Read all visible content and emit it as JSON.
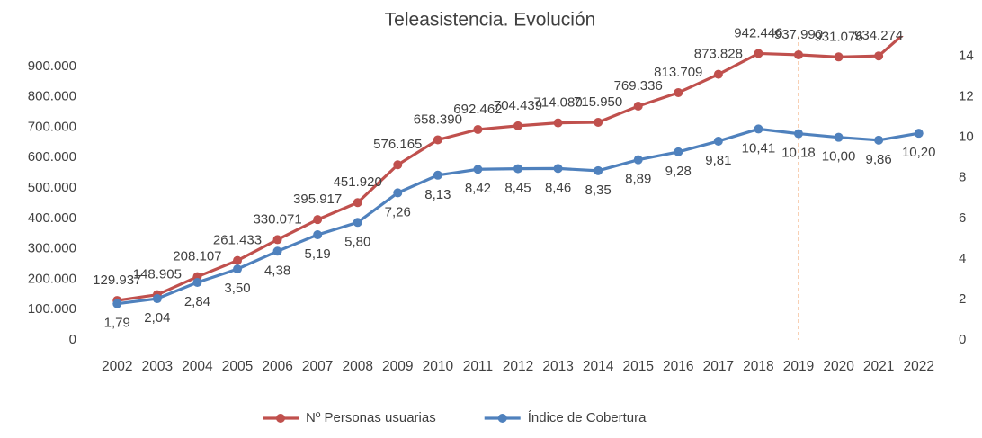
{
  "chart_data": {
    "type": "line",
    "title": "Teleasistencia. Evolución",
    "categories": [
      "2002",
      "2003",
      "2004",
      "2005",
      "2006",
      "2007",
      "2008",
      "2009",
      "2010",
      "2011",
      "2012",
      "2013",
      "2014",
      "2015",
      "2016",
      "2017",
      "2018",
      "2019",
      "2020",
      "2021",
      "2022"
    ],
    "series": [
      {
        "name": "Nº Personas usuarias",
        "color": "#c0504d",
        "values": [
          129937,
          148905,
          208107,
          261433,
          330071,
          395917,
          451920,
          576165,
          658390,
          692462,
          704439,
          714080,
          715950,
          769336,
          813709,
          873828,
          942446,
          937990,
          931076,
          934274,
          1050000
        ],
        "value_labels": [
          "129.937",
          "148.905",
          "208.107",
          "261.433",
          "330.071",
          "395.917",
          "451.920",
          "576.165",
          "658.390",
          "692.462",
          "704.439",
          "714.080",
          "715.950",
          "769.336",
          "813.709",
          "873.828",
          "942.446",
          "937.990",
          "931.076",
          "934.274",
          null
        ]
      },
      {
        "name": "Índice de Cobertura",
        "color": "#4f81bd",
        "axis": "y2",
        "values": [
          1.79,
          2.04,
          2.84,
          3.5,
          4.38,
          5.19,
          5.8,
          7.26,
          8.13,
          8.42,
          8.45,
          8.46,
          8.35,
          8.89,
          9.28,
          9.81,
          10.41,
          10.18,
          10.0,
          9.86,
          10.2
        ],
        "value_labels": [
          "1,79",
          "2,04",
          "2,84",
          "3,50",
          "4,38",
          "5,19",
          "5,80",
          "7,26",
          "8,13",
          "8,42",
          "8,45",
          "8,46",
          "8,35",
          "8,89",
          "9,28",
          "9,81",
          "10,41",
          "10,18",
          "10,00",
          "9,86",
          "10,20"
        ]
      }
    ],
    "ylim": [
      0,
      1000000
    ],
    "yticks": [
      0,
      {
        "value": 100000,
        "label": "100.000"
      },
      {
        "value": 200000,
        "label": "200.000"
      },
      {
        "value": 300000,
        "label": "300.000"
      },
      {
        "value": 400000,
        "label": "400.000"
      },
      {
        "value": 500000,
        "label": "500.000"
      },
      {
        "value": 600000,
        "label": "600.000"
      },
      {
        "value": 700000,
        "label": "700.000"
      },
      {
        "value": 800000,
        "label": "800.000"
      },
      {
        "value": 900000,
        "label": "900.000"
      }
    ],
    "y2lim": [
      0,
      15
    ],
    "y2ticks": [
      0,
      2,
      4,
      6,
      8,
      10,
      12,
      14
    ],
    "vline_category": "2019",
    "vline_color": "#f4b183",
    "legend": "bottom"
  }
}
